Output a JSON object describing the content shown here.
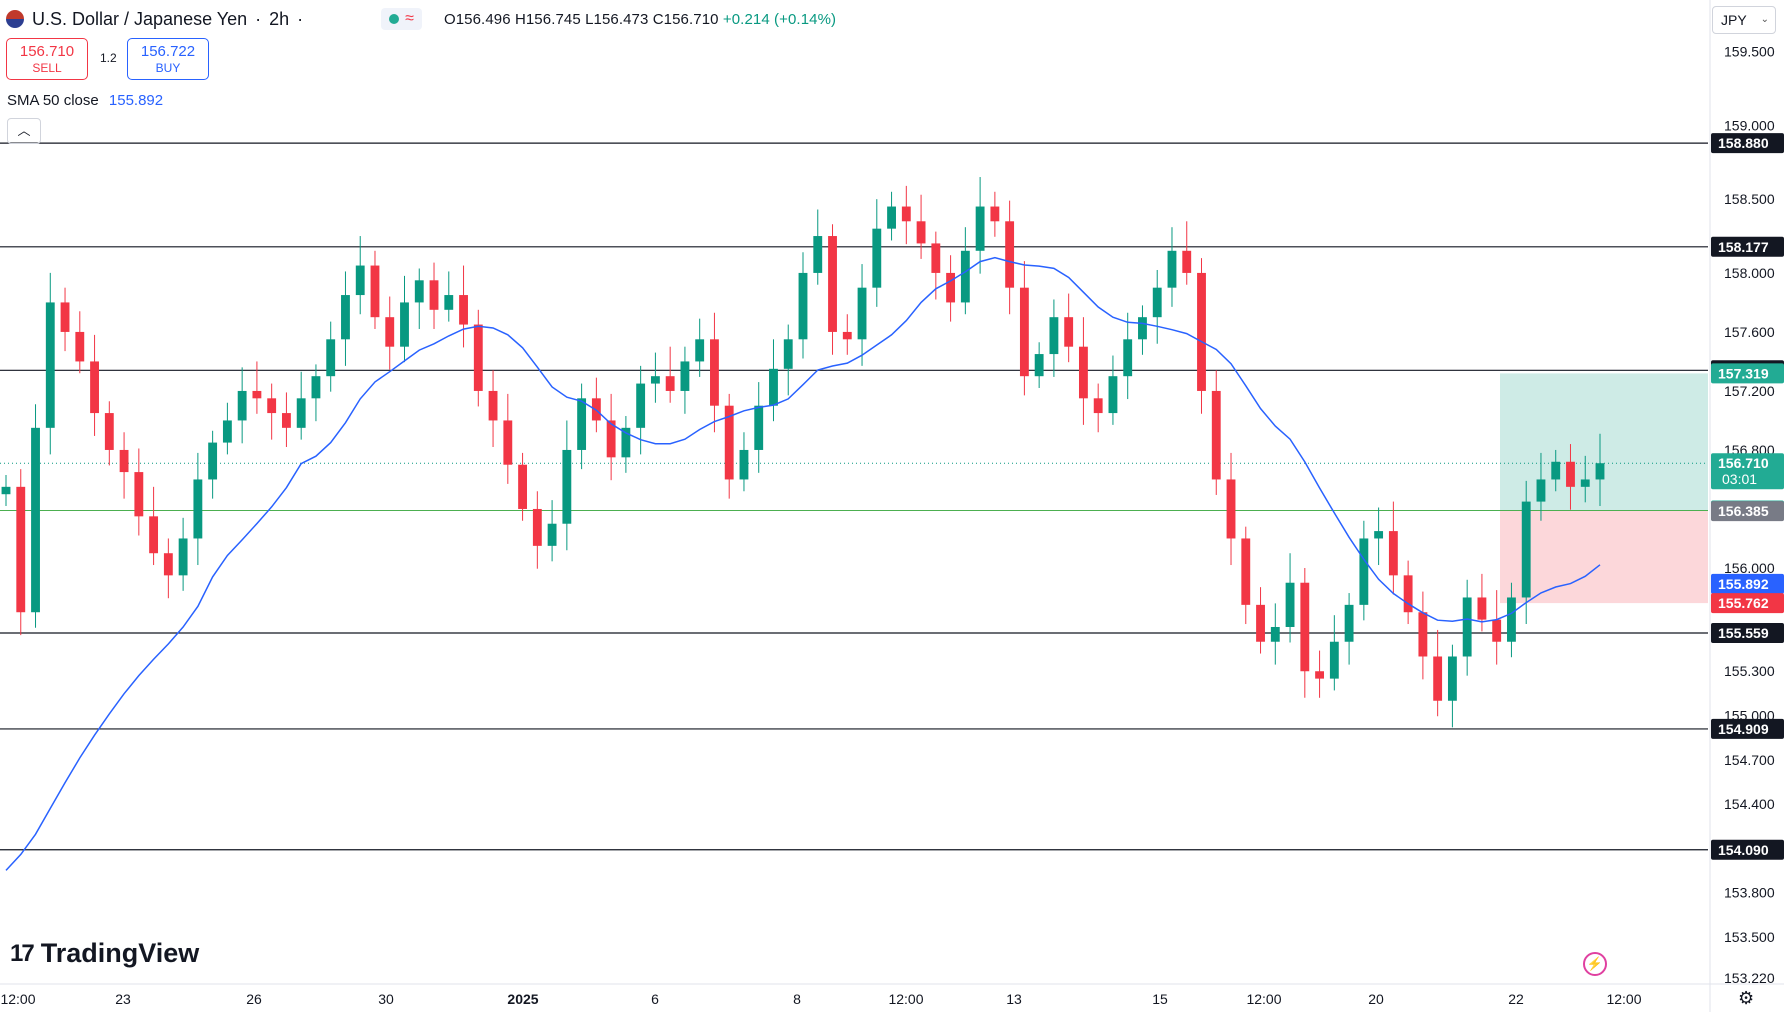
{
  "header": {
    "symbol": "U.S. Dollar / Japanese Yen",
    "interval": "2h",
    "open": "O156.496",
    "high": "H156.745",
    "low": "L156.473",
    "close": "C156.710",
    "change": "+0.214 (+0.14%)"
  },
  "trade": {
    "sell_price": "156.710",
    "sell_label": "SELL",
    "spread": "1.2",
    "buy_price": "156.722",
    "buy_label": "BUY"
  },
  "indicator": {
    "label": "SMA 50 close",
    "value": "155.892"
  },
  "currency": "JPY",
  "branding": "TradingView",
  "chart_data": {
    "type": "candlestick",
    "x_ticks": [
      "12:00",
      "23",
      "26",
      "30",
      "2025",
      "6",
      "8",
      "12:00",
      "13",
      "15",
      "12:00",
      "20",
      "22",
      "12:00"
    ],
    "y_ticks": [
      "159.500",
      "159.000",
      "158.500",
      "158.000",
      "157.600",
      "157.200",
      "156.800",
      "156.000",
      "155.300",
      "155.000",
      "154.700",
      "154.400",
      "153.800",
      "153.500",
      "153.220"
    ],
    "ylim": [
      153.18,
      159.85
    ],
    "horizontal_levels": [
      "158.880",
      "158.177",
      "157.340",
      "155.559",
      "154.909",
      "154.090"
    ],
    "position": {
      "entry": "156.390",
      "target": "157.319",
      "stop": "155.762"
    },
    "price_labels": {
      "last": "156.710",
      "countdown": "03:01",
      "prev": "156.385",
      "sma": "155.892"
    },
    "colors": {
      "up": "#089981",
      "down": "#f23645",
      "sma": "#2962ff",
      "level": "#131722"
    },
    "closes": [
      156.55,
      155.7,
      156.95,
      157.8,
      157.6,
      157.4,
      157.05,
      156.8,
      156.65,
      156.35,
      156.1,
      155.95,
      156.2,
      156.6,
      156.85,
      157.0,
      157.2,
      157.15,
      157.05,
      156.95,
      157.15,
      157.3,
      157.55,
      157.85,
      158.05,
      157.7,
      157.5,
      157.8,
      157.95,
      157.75,
      157.85,
      157.65,
      157.2,
      157.0,
      156.7,
      156.4,
      156.15,
      156.3,
      156.8,
      157.15,
      157.0,
      156.75,
      156.95,
      157.25,
      157.3,
      157.2,
      157.4,
      157.55,
      157.1,
      156.6,
      156.8,
      157.1,
      157.35,
      157.55,
      158.0,
      158.25,
      157.6,
      157.55,
      157.9,
      158.3,
      158.45,
      158.35,
      158.2,
      158.0,
      157.8,
      158.15,
      158.45,
      158.35,
      157.9,
      157.3,
      157.45,
      157.7,
      157.5,
      157.15,
      157.05,
      157.3,
      157.55,
      157.7,
      157.9,
      158.15,
      158.0,
      157.2,
      156.6,
      156.2,
      155.75,
      155.5,
      155.6,
      155.9,
      155.3,
      155.25,
      155.5,
      155.75,
      156.2,
      156.25,
      155.95,
      155.7,
      155.4,
      155.1,
      155.4,
      155.8,
      155.65,
      155.5,
      155.8,
      156.45,
      156.6,
      156.72,
      156.55,
      156.6,
      156.71
    ],
    "sma_value": "155.892"
  }
}
